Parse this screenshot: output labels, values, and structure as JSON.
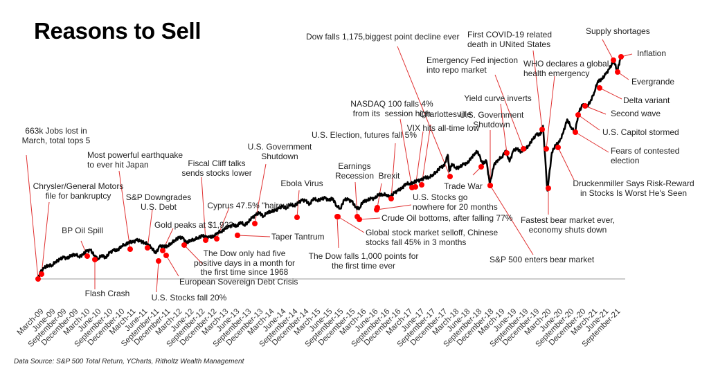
{
  "chart_data": {
    "type": "line",
    "title": "Reasons to Sell",
    "source": "Data Source: S&P 500 Total Return, YCharts, Ritholtz Wealth Management",
    "xlabel": "",
    "ylabel": "",
    "grid": false,
    "legend": "none",
    "colors": {
      "line": "#000000",
      "marker": "#ff0000",
      "leader": "#e03030",
      "baseline": "#999999"
    },
    "xticks": [
      "March-09",
      "June-09",
      "September-09",
      "December-09",
      "March-10",
      "June-10",
      "September-10",
      "December-10",
      "March-11",
      "June-11",
      "September-11",
      "December-11",
      "March-12",
      "June-12",
      "September-12",
      "December-12",
      "March-13",
      "June-13",
      "September-13",
      "December-13",
      "March-14",
      "June-14",
      "September-14",
      "December-14",
      "March-15",
      "June-15",
      "September-15",
      "December-15",
      "March-16",
      "June-16",
      "September-16",
      "December-16",
      "March-17",
      "June-17",
      "September-17",
      "December-17",
      "March-18",
      "June-18",
      "September-18",
      "December-18",
      "March-19",
      "June-19",
      "September-19",
      "December-19",
      "March-20",
      "June-20",
      "September-20",
      "December-20",
      "March-21",
      "June-21",
      "September-21"
    ],
    "series": [
      {
        "points": [
          [
            "2009-03-09",
            677
          ],
          [
            "2009-03-28",
            798
          ],
          [
            "2009-04-28",
            873
          ],
          [
            "2009-05-28",
            919
          ],
          [
            "2009-06-28",
            919
          ],
          [
            "2009-07-28",
            987
          ],
          [
            "2009-08-28",
            1021
          ],
          [
            "2009-09-28",
            1057
          ],
          [
            "2009-10-28",
            1036
          ],
          [
            "2009-11-28",
            1096
          ],
          [
            "2009-12-28",
            1115
          ],
          [
            "2010-01-28",
            1074
          ],
          [
            "2010-02-28",
            1104
          ],
          [
            "2010-03-28",
            1169
          ],
          [
            "2010-04-28",
            1187
          ],
          [
            "2010-05-28",
            1089
          ],
          [
            "2010-06-28",
            1031
          ],
          [
            "2010-07-28",
            1102
          ],
          [
            "2010-08-28",
            1049
          ],
          [
            "2010-09-28",
            1141
          ],
          [
            "2010-10-28",
            1183
          ],
          [
            "2010-11-28",
            1181
          ],
          [
            "2010-12-28",
            1258
          ],
          [
            "2011-01-28",
            1286
          ],
          [
            "2011-02-28",
            1327
          ],
          [
            "2011-03-28",
            1326
          ],
          [
            "2011-04-28",
            1364
          ],
          [
            "2011-05-28",
            1345
          ],
          [
            "2011-06-28",
            1321
          ],
          [
            "2011-07-28",
            1292
          ],
          [
            "2011-08-28",
            1219
          ],
          [
            "2011-09-28",
            1131
          ],
          [
            "2011-10-28",
            1253
          ],
          [
            "2011-11-28",
            1247
          ],
          [
            "2011-12-28",
            1258
          ],
          [
            "2012-01-28",
            1312
          ],
          [
            "2012-02-28",
            1366
          ],
          [
            "2012-03-28",
            1408
          ],
          [
            "2012-04-28",
            1398
          ],
          [
            "2012-05-28",
            1310
          ],
          [
            "2012-06-28",
            1362
          ],
          [
            "2012-07-28",
            1379
          ],
          [
            "2012-08-28",
            1407
          ],
          [
            "2012-09-28",
            1441
          ],
          [
            "2012-10-28",
            1412
          ],
          [
            "2012-11-28",
            1416
          ],
          [
            "2012-12-28",
            1426
          ],
          [
            "2013-01-28",
            1498
          ],
          [
            "2013-02-28",
            1515
          ],
          [
            "2013-03-28",
            1569
          ],
          [
            "2013-04-28",
            1598
          ],
          [
            "2013-05-28",
            1631
          ],
          [
            "2013-06-28",
            1606
          ],
          [
            "2013-07-28",
            1686
          ],
          [
            "2013-08-28",
            1633
          ],
          [
            "2013-09-28",
            1682
          ],
          [
            "2013-10-28",
            1757
          ],
          [
            "2013-11-28",
            1806
          ],
          [
            "2013-12-28",
            1848
          ],
          [
            "2014-01-28",
            1783
          ],
          [
            "2014-02-28",
            1859
          ],
          [
            "2014-03-28",
            1872
          ],
          [
            "2014-04-28",
            1884
          ],
          [
            "2014-05-28",
            1924
          ],
          [
            "2014-06-28",
            1960
          ],
          [
            "2014-07-28",
            1931
          ],
          [
            "2014-08-28",
            2003
          ],
          [
            "2014-09-28",
            1972
          ],
          [
            "2014-10-28",
            2018
          ],
          [
            "2014-11-28",
            2068
          ],
          [
            "2014-12-28",
            2059
          ],
          [
            "2015-01-28",
            1995
          ],
          [
            "2015-02-28",
            2105
          ],
          [
            "2015-03-28",
            2068
          ],
          [
            "2015-04-28",
            2086
          ],
          [
            "2015-05-28",
            2107
          ],
          [
            "2015-06-28",
            2063
          ],
          [
            "2015-07-28",
            2104
          ],
          [
            "2015-08-28",
            1972
          ],
          [
            "2015-09-28",
            1920
          ],
          [
            "2015-10-28",
            2079
          ],
          [
            "2015-11-28",
            2080
          ],
          [
            "2015-12-28",
            2044
          ],
          [
            "2016-01-28",
            1940
          ],
          [
            "2016-02-28",
            1932
          ],
          [
            "2016-03-28",
            2060
          ],
          [
            "2016-04-28",
            2065
          ],
          [
            "2016-05-28",
            2097
          ],
          [
            "2016-06-28",
            2099
          ],
          [
            "2016-07-28",
            2174
          ],
          [
            "2016-08-28",
            2171
          ],
          [
            "2016-09-28",
            2168
          ],
          [
            "2016-10-28",
            2126
          ],
          [
            "2016-11-28",
            2199
          ],
          [
            "2016-12-28",
            2239
          ],
          [
            "2017-01-28",
            2279
          ],
          [
            "2017-02-28",
            2364
          ],
          [
            "2017-03-28",
            2363
          ],
          [
            "2017-04-28",
            2384
          ],
          [
            "2017-05-28",
            2412
          ],
          [
            "2017-06-28",
            2423
          ],
          [
            "2017-07-28",
            2470
          ],
          [
            "2017-08-28",
            2472
          ],
          [
            "2017-09-28",
            2519
          ],
          [
            "2017-10-28",
            2575
          ],
          [
            "2017-11-28",
            2648
          ],
          [
            "2017-12-28",
            2674
          ],
          [
            "2018-01-26",
            2873
          ],
          [
            "2018-02-08",
            2581
          ],
          [
            "2018-02-28",
            2714
          ],
          [
            "2018-03-28",
            2641
          ],
          [
            "2018-04-28",
            2648
          ],
          [
            "2018-05-28",
            2705
          ],
          [
            "2018-06-28",
            2718
          ],
          [
            "2018-07-28",
            2816
          ],
          [
            "2018-08-28",
            2902
          ],
          [
            "2018-09-20",
            2931
          ],
          [
            "2018-10-28",
            2712
          ],
          [
            "2018-11-28",
            2760
          ],
          [
            "2018-12-24",
            2351
          ],
          [
            "2019-01-28",
            2704
          ],
          [
            "2019-02-28",
            2784
          ],
          [
            "2019-03-28",
            2834
          ],
          [
            "2019-04-28",
            2946
          ],
          [
            "2019-05-28",
            2752
          ],
          [
            "2019-06-28",
            2942
          ],
          [
            "2019-07-28",
            2980
          ],
          [
            "2019-08-28",
            2926
          ],
          [
            "2019-09-28",
            2977
          ],
          [
            "2019-10-28",
            3038
          ],
          [
            "2019-11-28",
            3141
          ],
          [
            "2019-12-28",
            3231
          ],
          [
            "2020-01-28",
            3226
          ],
          [
            "2020-02-19",
            3386
          ],
          [
            "2020-03-23",
            2237
          ],
          [
            "2020-04-28",
            2912
          ],
          [
            "2020-05-28",
            3044
          ],
          [
            "2020-06-28",
            3100
          ],
          [
            "2020-07-28",
            3271
          ],
          [
            "2020-08-28",
            3500
          ],
          [
            "2020-09-28",
            3363
          ],
          [
            "2020-10-28",
            3270
          ],
          [
            "2020-11-28",
            3622
          ],
          [
            "2020-12-28",
            3756
          ],
          [
            "2021-01-28",
            3714
          ],
          [
            "2021-02-28",
            3811
          ],
          [
            "2021-03-28",
            3973
          ],
          [
            "2021-04-28",
            4181
          ],
          [
            "2021-05-28",
            4204
          ],
          [
            "2021-06-28",
            4298
          ],
          [
            "2021-07-28",
            4395
          ],
          [
            "2021-08-28",
            4523
          ],
          [
            "2021-09-02",
            4537
          ],
          [
            "2021-09-28",
            4352
          ],
          [
            "2021-10-22",
            4560
          ]
        ]
      }
    ],
    "annotations": [
      {
        "text": "663k Jobs lost in\nMarch, total tops 5"
      },
      {
        "text": "Chrysler/General Motors\nfile for bankruptcy"
      },
      {
        "text": "BP Oil Spill"
      },
      {
        "text": "Flash Crash"
      },
      {
        "text": "Most powerful earthquake\nto ever hit Japan"
      },
      {
        "text": "S&P Downgrades\nU.S. Debt"
      },
      {
        "text": "Gold peaks at $1,923"
      },
      {
        "text": "U.S. Stocks fall 20%"
      },
      {
        "text": "European Sovereign Debt Crisis"
      },
      {
        "text": "Fiscal Cliff talks\nsends stocks lower"
      },
      {
        "text": "Cyprus 47.5% \"haircut\""
      },
      {
        "text": "The Dow only had five\npositive days in a month for\nthe first time since 1968"
      },
      {
        "text": "U.S. Government\nShutdown"
      },
      {
        "text": "Taper Tantrum"
      },
      {
        "text": "Ebola Virus"
      },
      {
        "text": "The Dow falls 1,000 points for\nthe first time ever"
      },
      {
        "text": "Earnings\nRecession"
      },
      {
        "text": "Global stock market selloff, Chinese\nstocks fall 45% in 3 months"
      },
      {
        "text": "Crude Oil bottoms, after falling 77%"
      },
      {
        "text": "Brexit"
      },
      {
        "text": "U.S. Stocks go\nnowhere for 20 months"
      },
      {
        "text": "U.S. Election, futures fall 5%"
      },
      {
        "text": "NASDAQ 100 falls 4%\nfrom its  session high"
      },
      {
        "text": "VIX hits all-time low"
      },
      {
        "text": "Charlottesville"
      },
      {
        "text": "Dow falls 1,175,biggest point decline ever"
      },
      {
        "text": "Trade War"
      },
      {
        "text": "U.S. Government\nShutdown"
      },
      {
        "text": "S&P 500 enters bear market"
      },
      {
        "text": "Yield curve inverts"
      },
      {
        "text": "Emergency Fed injection\ninto repo market"
      },
      {
        "text": "First COVID-19 related\ndeath in UNited States"
      },
      {
        "text": "WHO declares a global\nhealth emergency"
      },
      {
        "text": "Fastest bear market ever,\neconomy shuts down"
      },
      {
        "text": "Druckenmiller Says Risk-Reward\nin Stocks Is Worst He's Seen"
      },
      {
        "text": "Fears of contested\nelection"
      },
      {
        "text": "U.S. Capitol stormed"
      },
      {
        "text": "Second wave"
      },
      {
        "text": "Delta variant"
      },
      {
        "text": "Evergrande"
      },
      {
        "text": "Inflation"
      },
      {
        "text": "Supply shortages"
      }
    ]
  }
}
